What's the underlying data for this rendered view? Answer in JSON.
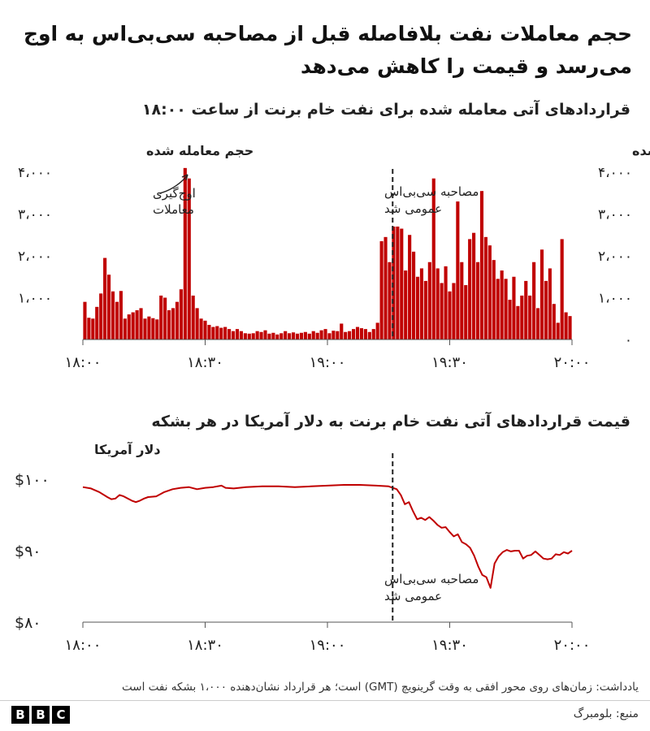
{
  "headline": "حجم معاملات نفت بلافاصله قبل از مصاحبه سی‌بی‌اس به اوج می‌رسد و قیمت را کاهش می‌دهد",
  "note": "یادداشت: زمان‌های روی محور افقی به وقت گرینویچ (GMT) است؛ هر قرارداد نشان‌دهنده ۱،۰۰۰ بشکه نفت است",
  "source": "منبع: بلومبرگ",
  "logo_letters": [
    "B",
    "B",
    "C"
  ],
  "colors": {
    "series": "#c00000",
    "marker": "#222222",
    "text": "#222222"
  },
  "chart_data": [
    {
      "type": "bar",
      "title": "قراردادهای آتی معامله شده برای نفت خام برنت از ساعت ۱۸:۰۰",
      "ylabel_left": "حجم معامله شده",
      "ylabel_right": "حجم معامله شده",
      "ylim": [
        0,
        4000
      ],
      "yticks": [
        0,
        1000,
        2000,
        3000,
        4000
      ],
      "ytick_labels": [
        "",
        "۱،۰۰۰",
        "۲،۰۰۰",
        "۳،۰۰۰",
        "۴،۰۰۰"
      ],
      "ytick_labels_right": [
        "۰",
        "۱،۰۰۰",
        "۲،۰۰۰",
        "۳،۰۰۰",
        "۴،۰۰۰"
      ],
      "xlim": [
        0,
        120
      ],
      "xticks": [
        0,
        30,
        60,
        90,
        120
      ],
      "xtick_labels": [
        "۱۸:۰۰",
        "۱۸:۳۰",
        "۱۹:۰۰",
        "۱۹:۳۰",
        "۲۰:۰۰"
      ],
      "x_unit": "minutes after 18:00",
      "values": [
        900,
        520,
        500,
        780,
        1100,
        1950,
        1550,
        1150,
        900,
        1160,
        500,
        600,
        650,
        700,
        750,
        500,
        550,
        510,
        480,
        1050,
        1000,
        700,
        750,
        900,
        1200,
        4100,
        3850,
        1050,
        750,
        500,
        450,
        350,
        300,
        320,
        280,
        300,
        250,
        200,
        250,
        200,
        150,
        140,
        150,
        200,
        180,
        220,
        140,
        160,
        120,
        150,
        200,
        150,
        170,
        140,
        160,
        180,
        140,
        200,
        160,
        220,
        250,
        150,
        210,
        200,
        380,
        180,
        200,
        250,
        300,
        270,
        250,
        180,
        250,
        400,
        2350,
        2450,
        1850,
        2700,
        2700,
        2650,
        1650,
        2500,
        2100,
        1500,
        1700,
        1400,
        1850,
        3850,
        1700,
        1350,
        1750,
        1150,
        1350,
        3300,
        1850,
        1300,
        2400,
        2550,
        1850,
        3550,
        2450,
        2250,
        1900,
        1450,
        1650,
        1450,
        950,
        1500,
        800,
        1050,
        1400,
        1050,
        1850,
        750,
        2150,
        1400,
        1700,
        850,
        400,
        2400,
        650,
        560
      ],
      "annotations": [
        {
          "text": [
            "اوج‌گیری",
            "معاملات"
          ],
          "x": 25.5
        },
        {
          "text": [
            "مصاحبه سی‌بی‌اس",
            "عمومی شد"
          ],
          "x": 76
        }
      ],
      "event_line_x": 76
    },
    {
      "type": "line",
      "title": "قیمت قراردادهای آتی نفت خام برنت به دلار آمریکا در هر بشکه",
      "ylabel": "دلار آمریکا",
      "ylim": [
        80,
        100
      ],
      "yticks": [
        80,
        90,
        100
      ],
      "ytick_labels": [
        "$۸۰",
        "$۹۰",
        "$۱۰۰"
      ],
      "xlim": [
        0,
        120
      ],
      "xticks": [
        0,
        30,
        60,
        90,
        120
      ],
      "xtick_labels": [
        "۱۸:۰۰",
        "۱۸:۳۰",
        "۱۹:۰۰",
        "۱۹:۳۰",
        "۲۰:۰۰"
      ],
      "x_unit": "minutes after 18:00",
      "points": [
        [
          0,
          98.9
        ],
        [
          2,
          98.7
        ],
        [
          4,
          98.2
        ],
        [
          6,
          97.5
        ],
        [
          7,
          97.2
        ],
        [
          8,
          97.3
        ],
        [
          9,
          97.8
        ],
        [
          10,
          97.6
        ],
        [
          12,
          97.0
        ],
        [
          13,
          96.8
        ],
        [
          14,
          97.0
        ],
        [
          15,
          97.3
        ],
        [
          16,
          97.5
        ],
        [
          18,
          97.6
        ],
        [
          20,
          98.2
        ],
        [
          22,
          98.6
        ],
        [
          24,
          98.8
        ],
        [
          26,
          98.9
        ],
        [
          28,
          98.6
        ],
        [
          30,
          98.8
        ],
        [
          32,
          98.9
        ],
        [
          34,
          99.1
        ],
        [
          35,
          98.8
        ],
        [
          37,
          98.7
        ],
        [
          40,
          98.9
        ],
        [
          44,
          99.0
        ],
        [
          48,
          99.0
        ],
        [
          52,
          98.9
        ],
        [
          56,
          99.0
        ],
        [
          60,
          99.1
        ],
        [
          64,
          99.2
        ],
        [
          68,
          99.2
        ],
        [
          72,
          99.1
        ],
        [
          75,
          99.0
        ],
        [
          76,
          98.8
        ],
        [
          77,
          98.6
        ],
        [
          78,
          97.8
        ],
        [
          79,
          96.5
        ],
        [
          80,
          96.8
        ],
        [
          81,
          95.5
        ],
        [
          82,
          94.4
        ],
        [
          83,
          94.6
        ],
        [
          84,
          94.3
        ],
        [
          85,
          94.7
        ],
        [
          86,
          94.2
        ],
        [
          87,
          93.6
        ],
        [
          88,
          93.2
        ],
        [
          89,
          93.3
        ],
        [
          90,
          92.6
        ],
        [
          91,
          92.0
        ],
        [
          92,
          92.3
        ],
        [
          93,
          91.2
        ],
        [
          94,
          90.9
        ],
        [
          95,
          90.4
        ],
        [
          96,
          89.3
        ],
        [
          97,
          87.8
        ],
        [
          98,
          86.6
        ],
        [
          99,
          86.3
        ],
        [
          100,
          84.8
        ],
        [
          101,
          88.2
        ],
        [
          102,
          89.2
        ],
        [
          103,
          89.8
        ],
        [
          104,
          90.1
        ],
        [
          105,
          89.9
        ],
        [
          106,
          90.0
        ],
        [
          107,
          90.0
        ],
        [
          108,
          88.9
        ],
        [
          109,
          89.3
        ],
        [
          110,
          89.4
        ],
        [
          111,
          89.9
        ],
        [
          112,
          89.4
        ],
        [
          113,
          88.9
        ],
        [
          114,
          88.8
        ],
        [
          115,
          88.9
        ],
        [
          116,
          89.5
        ],
        [
          117,
          89.4
        ],
        [
          118,
          89.8
        ],
        [
          119,
          89.6
        ],
        [
          120,
          90.0
        ]
      ],
      "annotations": [
        {
          "text": [
            "مصاحبه سی‌بی‌اس",
            "عمومی شد"
          ],
          "x": 76
        }
      ],
      "event_line_x": 76
    }
  ]
}
